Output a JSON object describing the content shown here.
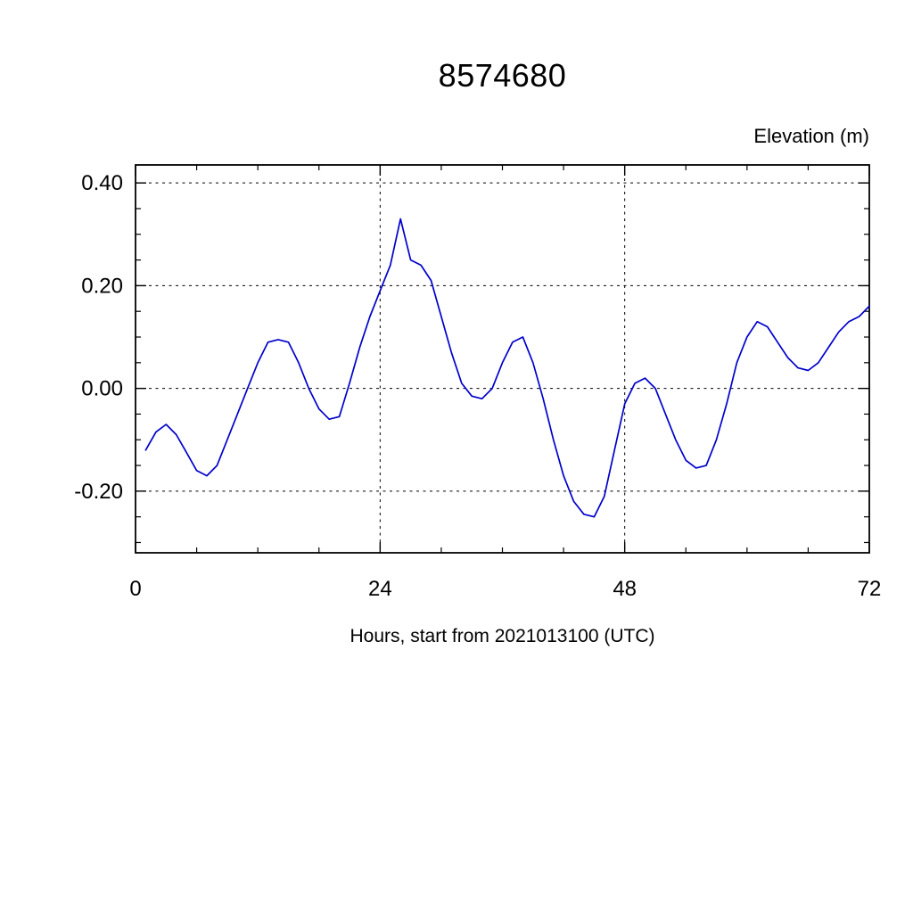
{
  "page": {
    "background": "#ffffff"
  },
  "chart_data": {
    "type": "line",
    "title": "8574680",
    "ylabel": "Elevation (m)",
    "xlabel": "Hours, start from 2021013100 (UTC)",
    "line_color": "#0000cc",
    "frame_color": "#000000",
    "grid_style": "dashed",
    "legend": "none",
    "xlim": [
      0,
      72
    ],
    "ylim": [
      -0.32,
      0.435
    ],
    "x_major_ticks": [
      0,
      24,
      48,
      72
    ],
    "x_tick_labels": [
      "0",
      "24",
      "48",
      "72"
    ],
    "x_minor_step": 6,
    "y_major_ticks": [
      0.4,
      0.2,
      0.0,
      -0.2
    ],
    "y_tick_labels": [
      "0.40",
      "0.20",
      "0.00",
      "-0.20"
    ],
    "y_minor_step": 0.05,
    "grid_x": [
      24,
      48
    ],
    "grid_y": [
      0.4,
      0.2,
      0.0,
      -0.2
    ],
    "x": [
      1,
      2,
      3,
      4,
      5,
      6,
      7,
      8,
      9,
      10,
      11,
      12,
      13,
      14,
      15,
      16,
      17,
      18,
      19,
      20,
      21,
      22,
      23,
      24,
      25,
      26,
      27,
      28,
      29,
      30,
      31,
      32,
      33,
      34,
      35,
      36,
      37,
      38,
      39,
      40,
      41,
      42,
      43,
      44,
      45,
      46,
      47,
      48,
      49,
      50,
      51,
      52,
      53,
      54,
      55,
      56,
      57,
      58,
      59,
      60,
      61,
      62,
      63,
      64,
      65,
      66,
      67,
      68,
      69,
      70,
      71,
      72
    ],
    "series": [
      {
        "name": "elevation",
        "values": [
          -0.12,
          -0.085,
          -0.07,
          -0.09,
          -0.125,
          -0.16,
          -0.17,
          -0.15,
          -0.1,
          -0.05,
          0.0,
          0.05,
          0.09,
          0.095,
          0.09,
          0.05,
          0.0,
          -0.04,
          -0.06,
          -0.055,
          0.01,
          0.08,
          0.14,
          0.19,
          0.24,
          0.33,
          0.25,
          0.24,
          0.21,
          0.14,
          0.07,
          0.01,
          -0.015,
          -0.02,
          0.0,
          0.05,
          0.09,
          0.1,
          0.05,
          -0.02,
          -0.1,
          -0.17,
          -0.22,
          -0.245,
          -0.25,
          -0.21,
          -0.12,
          -0.03,
          0.01,
          0.02,
          0.0,
          -0.05,
          -0.1,
          -0.14,
          -0.155,
          -0.15,
          -0.1,
          -0.03,
          0.05,
          0.1,
          0.13,
          0.12,
          0.09,
          0.06,
          0.04,
          0.035,
          0.05,
          0.08,
          0.11,
          0.13,
          0.14,
          0.16
        ]
      }
    ]
  }
}
